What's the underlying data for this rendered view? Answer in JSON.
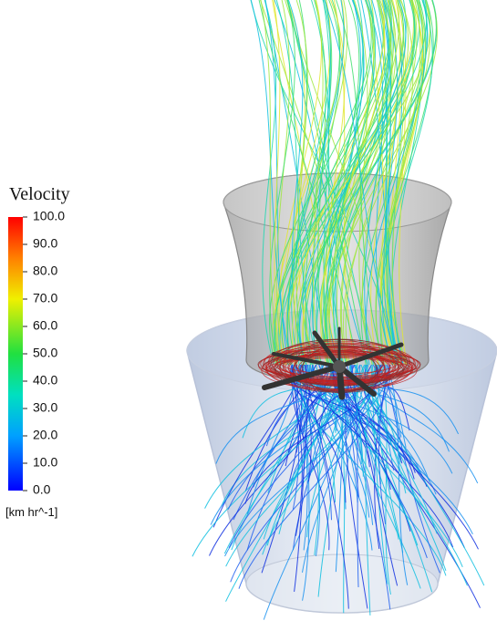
{
  "legend": {
    "title": "Velocity",
    "unit": "[km hr^-1]",
    "range": [
      0,
      100
    ],
    "ticks": [
      {
        "value": 100,
        "label": "100.0"
      },
      {
        "value": 90,
        "label": "90.0"
      },
      {
        "value": 80,
        "label": "80.0"
      },
      {
        "value": 70,
        "label": "70.0"
      },
      {
        "value": 60,
        "label": "60.0"
      },
      {
        "value": 50,
        "label": "50.0"
      },
      {
        "value": 40,
        "label": "40.0"
      },
      {
        "value": 30,
        "label": "30.0"
      },
      {
        "value": 20,
        "label": "20.0"
      },
      {
        "value": 10,
        "label": "10.0"
      },
      {
        "value": 0,
        "label": "0.0"
      }
    ]
  }
}
